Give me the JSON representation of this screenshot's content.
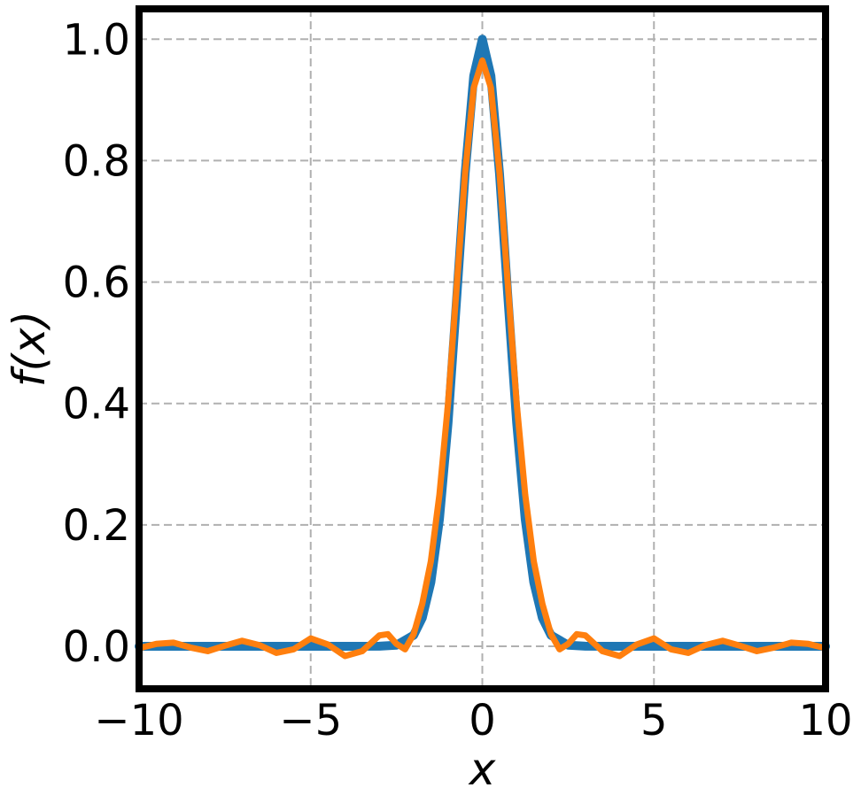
{
  "chart_data": {
    "type": "line",
    "title": "",
    "xlabel": "x",
    "ylabel": "f(x)",
    "xlim": [
      -10,
      10
    ],
    "ylim": [
      -0.07,
      1.05
    ],
    "grid": true,
    "xticks": [
      -10,
      -5,
      0,
      5,
      10
    ],
    "xtick_labels": [
      "−10",
      "−5",
      "0",
      "5",
      "10"
    ],
    "yticks": [
      0.0,
      0.2,
      0.4,
      0.6,
      0.8,
      1.0
    ],
    "ytick_labels": [
      "0.0",
      "0.2",
      "0.4",
      "0.6",
      "0.8",
      "1.0"
    ],
    "series": [
      {
        "color": "#1f77b4",
        "x": [
          -10,
          -8,
          -6,
          -4,
          -3,
          -2.5,
          -2,
          -1.75,
          -1.5,
          -1.25,
          -1,
          -0.75,
          -0.5,
          -0.25,
          0,
          0.25,
          0.5,
          0.75,
          1,
          1.25,
          1.5,
          1.75,
          2,
          2.5,
          3,
          4,
          6,
          8,
          10
        ],
        "y": [
          0,
          0,
          0,
          0,
          0.0001,
          0.0019,
          0.0183,
          0.0468,
          0.1054,
          0.2096,
          0.3679,
          0.5698,
          0.7788,
          0.9394,
          1.0,
          0.9394,
          0.7788,
          0.5698,
          0.3679,
          0.2096,
          0.1054,
          0.0468,
          0.0183,
          0.0019,
          0.0001,
          0,
          0,
          0,
          0
        ]
      },
      {
        "color": "#ff7f0e",
        "x": [
          -10,
          -9.5,
          -9,
          -8.5,
          -8,
          -7.5,
          -7,
          -6.5,
          -6,
          -5.5,
          -5,
          -4.5,
          -4,
          -3.5,
          -3,
          -2.75,
          -2.5,
          -2.25,
          -2,
          -1.75,
          -1.5,
          -1.25,
          -1,
          -0.75,
          -0.5,
          -0.25,
          0,
          0.25,
          0.5,
          0.75,
          1,
          1.25,
          1.5,
          1.75,
          2,
          2.25,
          2.5,
          2.75,
          3,
          3.5,
          4,
          4.5,
          5,
          5.5,
          6,
          6.5,
          7,
          7.5,
          8,
          8.5,
          9,
          9.5,
          10
        ],
        "y": [
          -0.003,
          0.004,
          0.006,
          -0.002,
          -0.008,
          0.001,
          0.009,
          0.002,
          -0.011,
          -0.005,
          0.013,
          0.003,
          -0.016,
          -0.008,
          0.018,
          0.02,
          0.004,
          -0.005,
          0.02,
          0.07,
          0.14,
          0.25,
          0.4,
          0.59,
          0.78,
          0.92,
          0.965,
          0.92,
          0.78,
          0.59,
          0.4,
          0.25,
          0.14,
          0.07,
          0.02,
          -0.005,
          0.004,
          0.02,
          0.018,
          -0.008,
          -0.016,
          0.003,
          0.013,
          -0.005,
          -0.011,
          0.002,
          0.009,
          0.001,
          -0.008,
          -0.002,
          0.006,
          0.004,
          -0.003
        ]
      }
    ]
  }
}
